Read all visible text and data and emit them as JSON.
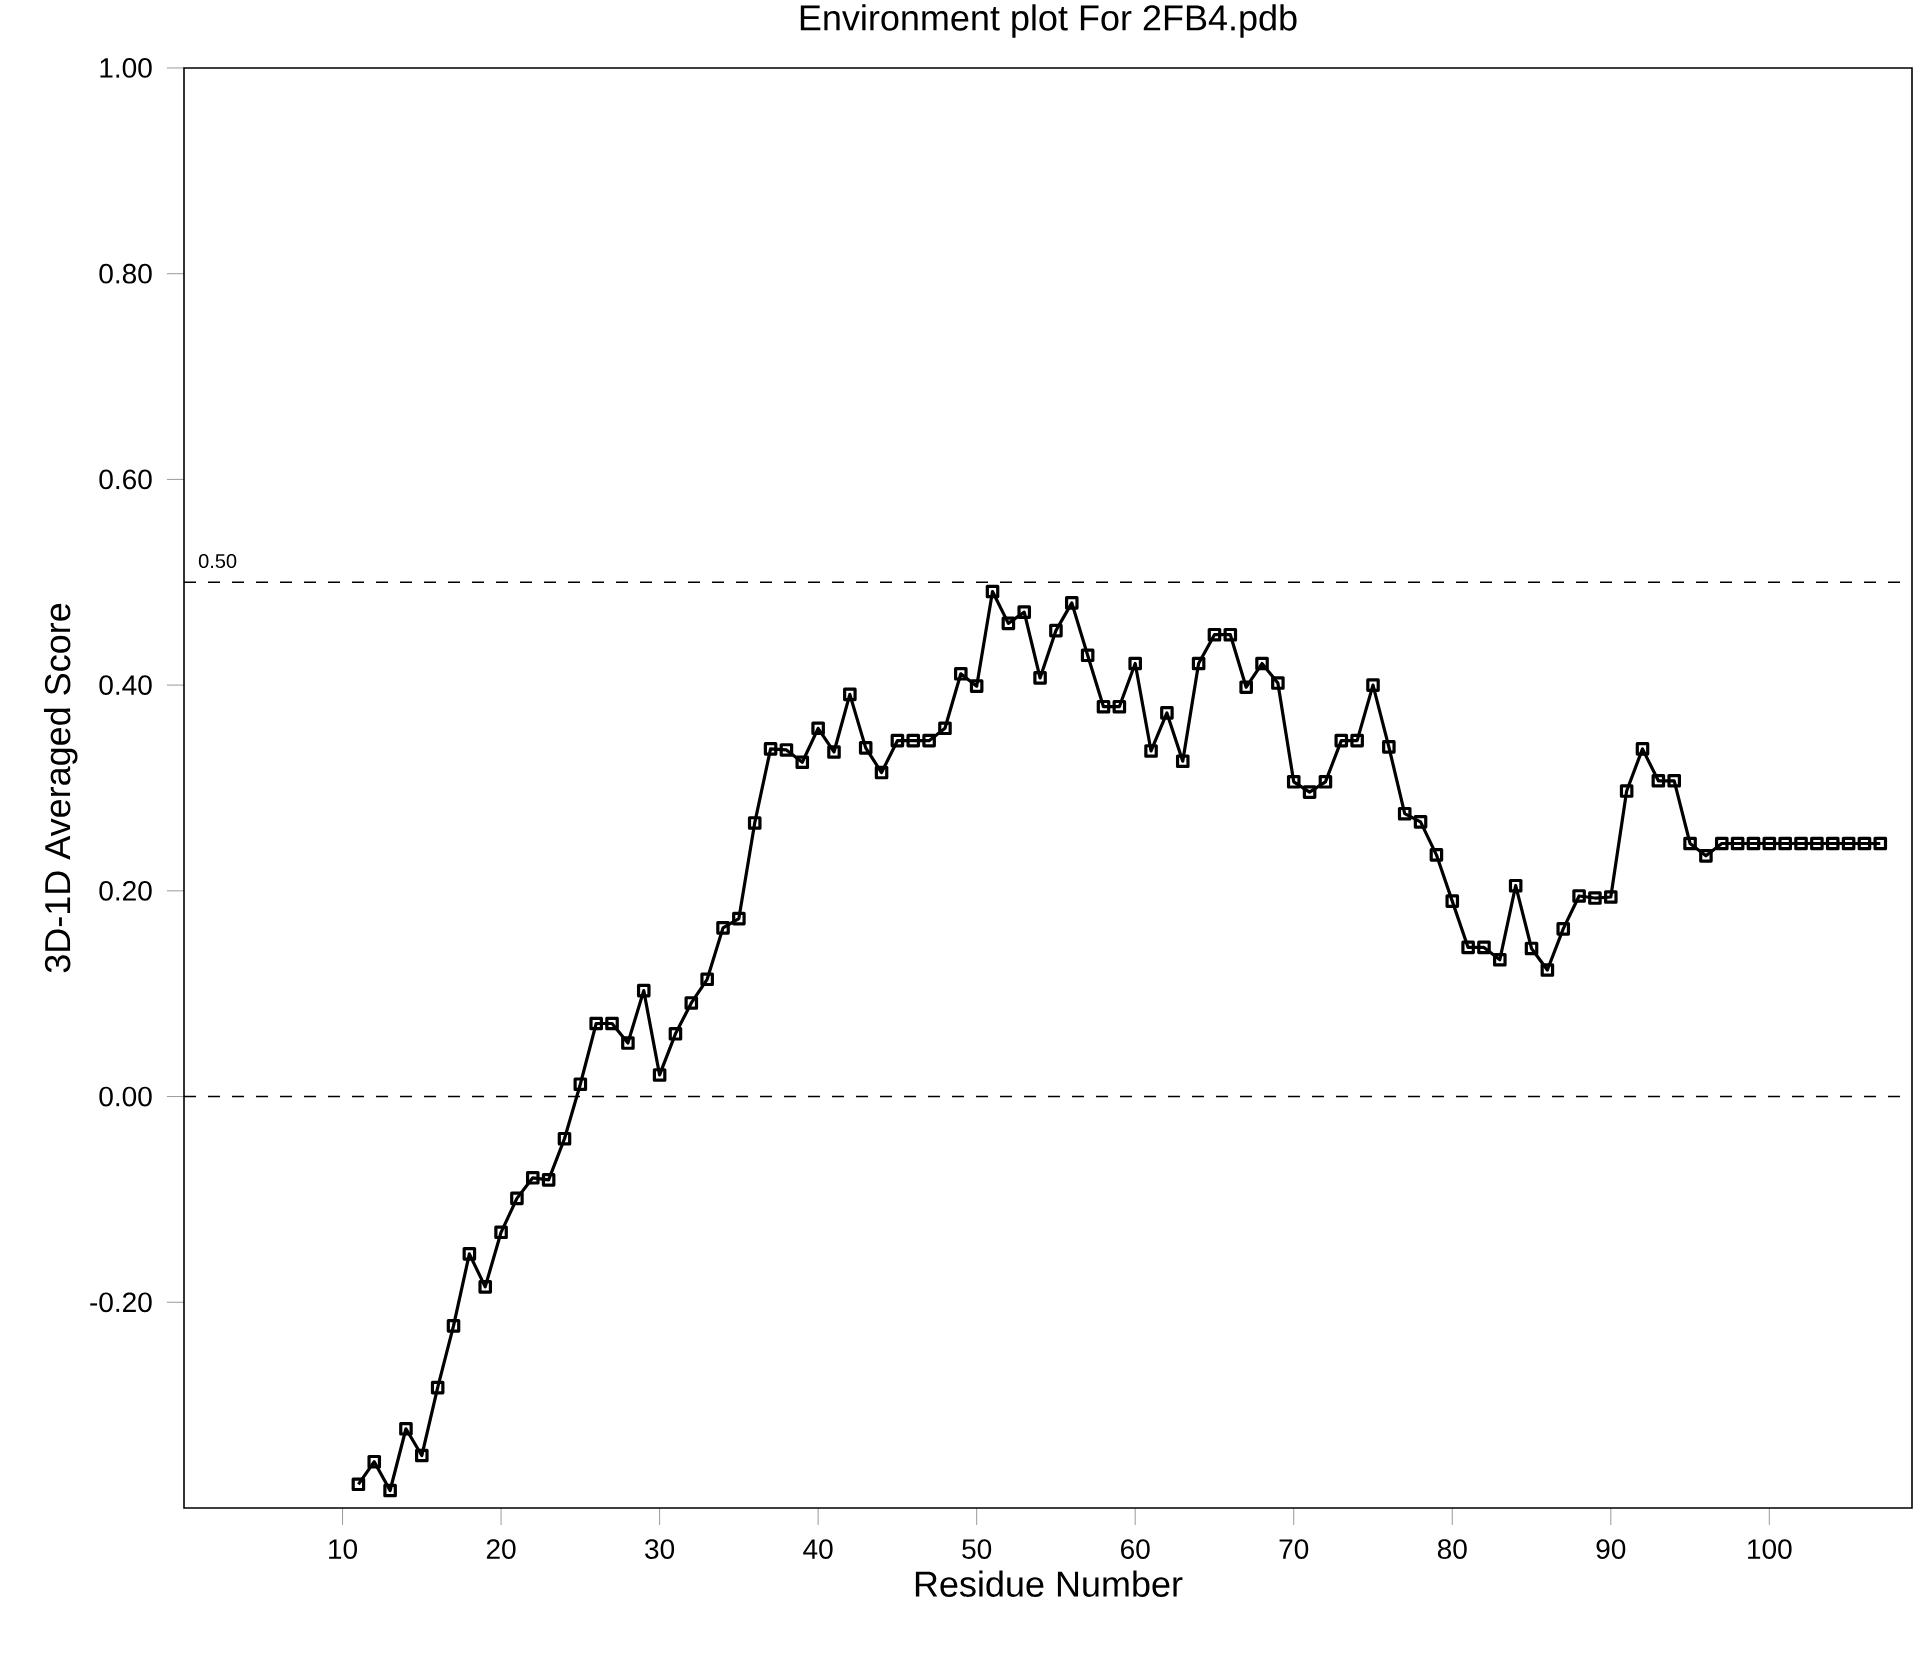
{
  "chart_data": {
    "type": "line",
    "title": "Environment plot For 2FB4.pdb",
    "xlabel": "Residue Number",
    "ylabel": "3D-1D Averaged Score",
    "x": [
      11,
      12,
      13,
      14,
      15,
      16,
      17,
      18,
      19,
      20,
      21,
      22,
      23,
      24,
      25,
      26,
      27,
      28,
      29,
      30,
      31,
      32,
      33,
      34,
      35,
      36,
      37,
      38,
      39,
      40,
      41,
      42,
      43,
      44,
      45,
      46,
      47,
      48,
      49,
      50,
      51,
      52,
      53,
      54,
      55,
      56,
      57,
      58,
      59,
      60,
      61,
      62,
      63,
      64,
      65,
      66,
      67,
      68,
      69,
      70,
      71,
      72,
      73,
      74,
      75,
      76,
      77,
      78,
      79,
      80,
      81,
      82,
      83,
      84,
      85,
      86,
      87,
      88,
      89,
      90,
      91,
      92,
      93,
      94,
      95,
      96,
      97,
      98,
      99,
      100,
      101,
      102,
      103,
      104,
      105,
      106,
      107
    ],
    "series": [
      {
        "color": "#000000",
        "values": [
          -0.377,
          -0.355,
          -0.383,
          -0.323,
          -0.349,
          -0.283,
          -0.223,
          -0.153,
          -0.185,
          -0.132,
          -0.099,
          -0.079,
          -0.081,
          -0.041,
          0.012,
          0.071,
          0.071,
          0.052,
          0.103,
          0.021,
          0.061,
          0.091,
          0.114,
          0.164,
          0.173,
          0.266,
          0.338,
          0.337,
          0.325,
          0.358,
          0.335,
          0.391,
          0.339,
          0.315,
          0.346,
          0.346,
          0.346,
          0.358,
          0.411,
          0.399,
          0.491,
          0.46,
          0.471,
          0.407,
          0.453,
          0.48,
          0.429,
          0.379,
          0.379,
          0.421,
          0.336,
          0.373,
          0.326,
          0.421,
          0.449,
          0.449,
          0.398,
          0.421,
          0.402,
          0.306,
          0.296,
          0.306,
          0.346,
          0.346,
          0.4,
          0.34,
          0.275,
          0.267,
          0.235,
          0.19,
          0.145,
          0.145,
          0.133,
          0.205,
          0.144,
          0.123,
          0.163,
          0.195,
          0.193,
          0.194,
          0.297,
          0.338,
          0.307,
          0.307,
          0.246,
          0.234,
          0.246,
          0.246,
          0.246,
          0.246,
          0.246,
          0.246,
          0.246,
          0.246,
          0.246,
          0.246,
          0.246
        ]
      }
    ],
    "xlim": [
      0,
      109
    ],
    "ylim": [
      -0.4,
      1.0
    ],
    "xticks": [
      10,
      20,
      30,
      40,
      50,
      60,
      70,
      80,
      90,
      100
    ],
    "yticks": [
      {
        "value": -0.2,
        "label": "-0.20"
      },
      {
        "value": 0,
        "label": "0.00"
      },
      {
        "value": 0.2,
        "label": "0.20"
      },
      {
        "value": 0.4,
        "label": "0.40"
      },
      {
        "value": 0.6,
        "label": "0.60"
      },
      {
        "value": 0.8,
        "label": "0.80"
      },
      {
        "value": 1.0,
        "label": "1.00"
      }
    ],
    "ref_lines": [
      {
        "axis": "y",
        "value": 0.5,
        "label": "0.50",
        "line_style": "dashed"
      },
      {
        "axis": "y",
        "value": 0,
        "line_style": "dashed"
      }
    ],
    "marker": "square",
    "line_style": "solid",
    "grid": false
  }
}
